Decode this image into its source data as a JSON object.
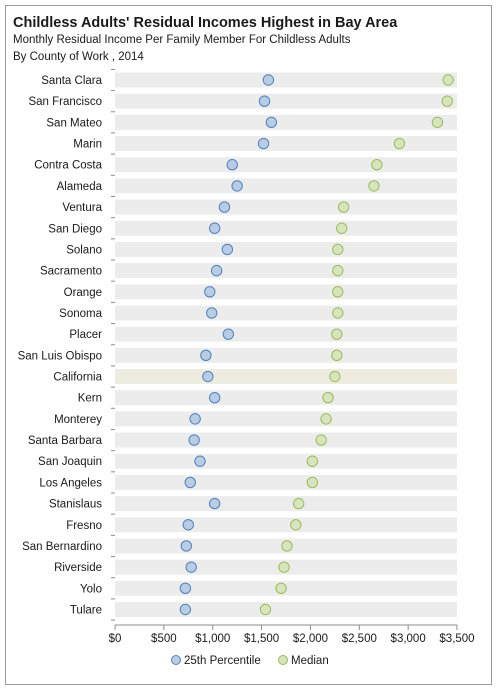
{
  "chart_data": {
    "type": "scatter",
    "title": "Childless Adults' Residual Incomes Highest in Bay Area",
    "subtitle": "Monthly Residual Income Per Family Member For Childless Adults",
    "subtitle2": "By County of Work , 2014",
    "categories": [
      "Santa Clara",
      "San Francisco",
      "San Mateo",
      "Marin",
      "Contra Costa",
      "Alameda",
      "Ventura",
      "San Diego",
      "Solano",
      "Sacramento",
      "Orange",
      "Sonoma",
      "Placer",
      "San Luis Obispo",
      "California",
      "Kern",
      "Monterey",
      "Santa Barbara",
      "San Joaquin",
      "Los Angeles",
      "Stanislaus",
      "Fresno",
      "San Bernardino",
      "Riverside",
      "Yolo",
      "Tulare"
    ],
    "highlight_category": "California",
    "series": [
      {
        "name": "25th Percentile",
        "color": "#b8cce4",
        "stroke": "#4f81bd",
        "values": [
          1570,
          1530,
          1600,
          1520,
          1200,
          1250,
          1120,
          1020,
          1150,
          1040,
          970,
          990,
          1160,
          930,
          950,
          1020,
          820,
          810,
          870,
          770,
          1020,
          750,
          730,
          780,
          720,
          720
        ]
      },
      {
        "name": "Median",
        "color": "#d7e4bd",
        "stroke": "#9bbb59",
        "values": [
          3410,
          3400,
          3300,
          2910,
          2680,
          2650,
          2340,
          2320,
          2280,
          2280,
          2280,
          2280,
          2270,
          2270,
          2250,
          2180,
          2160,
          2110,
          2020,
          2020,
          1880,
          1850,
          1760,
          1730,
          1700,
          1540
        ]
      }
    ],
    "xlim": [
      0,
      3500
    ],
    "xticks": [
      0,
      500,
      1000,
      1500,
      2000,
      2500,
      3000,
      3500
    ],
    "xtick_labels": [
      "$0",
      "$500",
      "$1,000",
      "$1,500",
      "$2,000",
      "$2,500",
      "$3,000",
      "$3,500"
    ],
    "xlabel": "",
    "ylabel": "",
    "legend_position": "bottom",
    "band_color": "#ececec",
    "highlight_color": "#eeece1"
  }
}
